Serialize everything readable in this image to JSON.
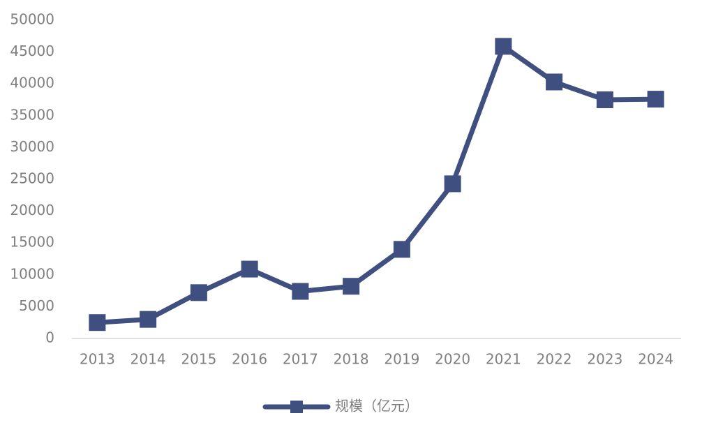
{
  "chart_data": {
    "type": "line",
    "categories": [
      "2013",
      "2014",
      "2015",
      "2016",
      "2017",
      "2018",
      "2019",
      "2020",
      "2021",
      "2022",
      "2023",
      "2024"
    ],
    "series": [
      {
        "name": "规模（亿元）",
        "color": "#3f4f7f",
        "values": [
          2500,
          3000,
          7200,
          10900,
          7400,
          8200,
          14000,
          24300,
          45900,
          40300,
          37500,
          37600
        ]
      }
    ],
    "ylim": [
      0,
      50000
    ],
    "yticks": [
      0,
      5000,
      10000,
      15000,
      20000,
      25000,
      30000,
      35000,
      40000,
      45000,
      50000
    ],
    "grid": false,
    "legend": "bottom"
  }
}
